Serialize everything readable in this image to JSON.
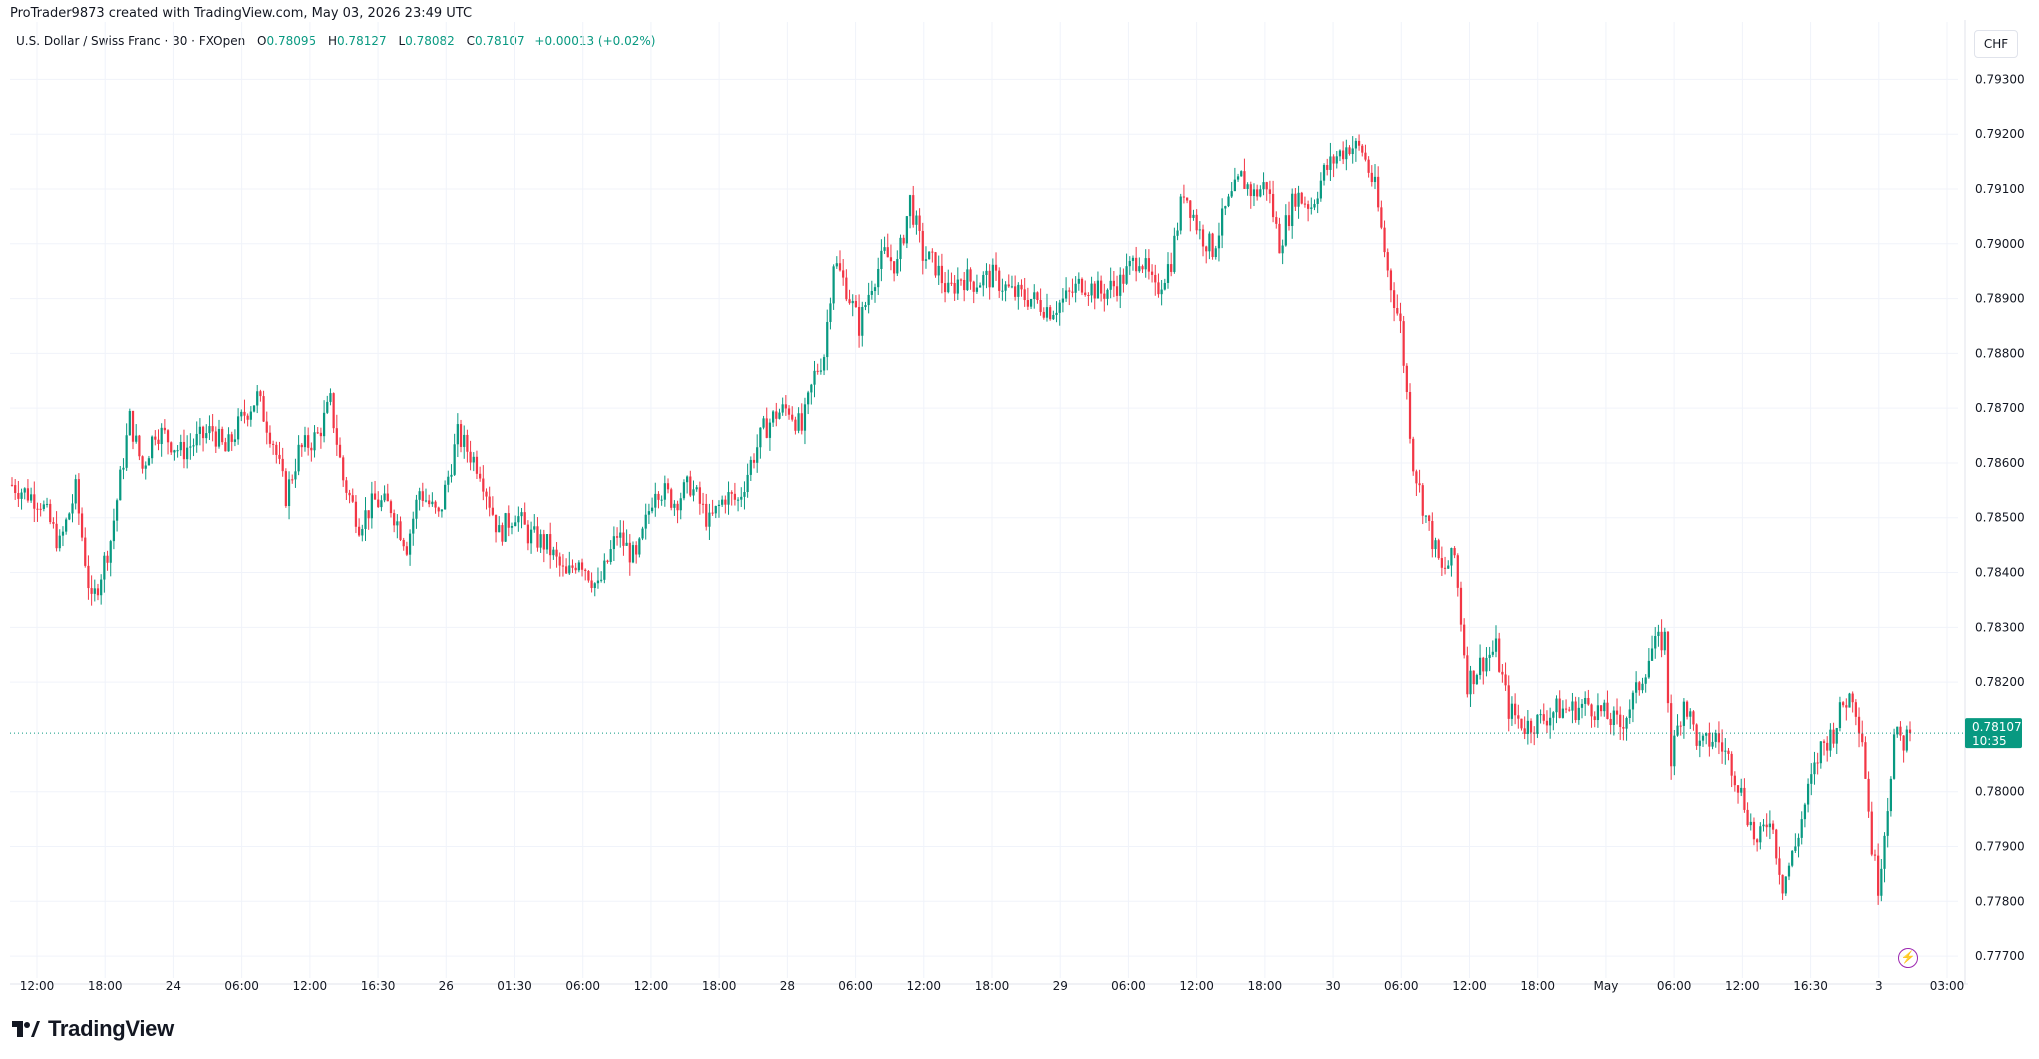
{
  "header": {
    "attribution": "ProTrader9873 created with TradingView.com, May 03, 2026 23:49 UTC"
  },
  "legend": {
    "symbol": "U.S. Dollar / Swiss Franc · 30 · FXOpen",
    "open_label": "O",
    "open_value": "0.78095",
    "high_label": "H",
    "high_value": "0.78127",
    "low_label": "L",
    "low_value": "0.78082",
    "close_label": "C",
    "close_value": "0.78107",
    "change": "+0.00013 (+0.02%)"
  },
  "currency_button": "CHF",
  "last_price_tag": {
    "price": "0.78107",
    "countdown": "10:35"
  },
  "brand": {
    "name": "TradingView",
    "logo_icon": "tradingview-logo-icon"
  },
  "icons": {
    "bolt": "lightning-icon"
  },
  "colors": {
    "up": "#089981",
    "down": "#f23645",
    "grid": "#f0f3fa",
    "text": "#131722"
  },
  "chart_data": {
    "type": "candlestick",
    "symbol": "USDCHF",
    "interval": "30",
    "ylim": [
      0.7766,
      0.7935
    ],
    "y_ticks": [
      "0.79300",
      "0.79200",
      "0.79100",
      "0.79000",
      "0.78900",
      "0.78800",
      "0.78700",
      "0.78600",
      "0.78500",
      "0.78400",
      "0.78300",
      "0.78200",
      "0.78000",
      "0.77900",
      "0.77800",
      "0.77700"
    ],
    "x_ticks": [
      "12:00",
      "18:00",
      "24",
      "06:00",
      "12:00",
      "16:30",
      "26",
      "01:30",
      "06:00",
      "12:00",
      "18:00",
      "28",
      "06:00",
      "12:00",
      "18:00",
      "29",
      "06:00",
      "12:00",
      "18:00",
      "30",
      "06:00",
      "12:00",
      "18:00",
      "May",
      "06:00",
      "12:00",
      "16:30",
      "3",
      "03:00"
    ],
    "last_price": 0.78107,
    "path_points": [
      [
        0,
        0.7856
      ],
      [
        9,
        0.7853
      ],
      [
        15,
        0.7845
      ],
      [
        20,
        0.7855
      ],
      [
        25,
        0.7834
      ],
      [
        31,
        0.7846
      ],
      [
        37,
        0.7868
      ],
      [
        41,
        0.7859
      ],
      [
        45,
        0.7866
      ],
      [
        48,
        0.7865
      ],
      [
        53,
        0.7862
      ],
      [
        58,
        0.7864
      ],
      [
        63,
        0.7866
      ],
      [
        67,
        0.7862
      ],
      [
        73,
        0.7869
      ],
      [
        77,
        0.7872
      ],
      [
        82,
        0.7864
      ],
      [
        86,
        0.7854
      ],
      [
        90,
        0.7862
      ],
      [
        96,
        0.7865
      ],
      [
        100,
        0.7871
      ],
      [
        104,
        0.7857
      ],
      [
        109,
        0.7849
      ],
      [
        114,
        0.7853
      ],
      [
        119,
        0.7852
      ],
      [
        124,
        0.7845
      ],
      [
        128,
        0.7855
      ],
      [
        134,
        0.785
      ],
      [
        140,
        0.7865
      ],
      [
        147,
        0.7859
      ],
      [
        153,
        0.7847
      ],
      [
        158,
        0.7851
      ],
      [
        162,
        0.7847
      ],
      [
        168,
        0.7845
      ],
      [
        174,
        0.7839
      ],
      [
        178,
        0.7843
      ],
      [
        184,
        0.7837
      ],
      [
        190,
        0.7847
      ],
      [
        196,
        0.7842
      ],
      [
        202,
        0.7856
      ],
      [
        208,
        0.7853
      ],
      [
        213,
        0.7856
      ],
      [
        219,
        0.7849
      ],
      [
        224,
        0.7854
      ],
      [
        228,
        0.7853
      ],
      [
        232,
        0.786
      ],
      [
        236,
        0.7866
      ],
      [
        240,
        0.7869
      ],
      [
        244,
        0.787
      ],
      [
        248,
        0.7866
      ],
      [
        252,
        0.7876
      ],
      [
        255,
        0.788
      ],
      [
        258,
        0.7897
      ],
      [
        262,
        0.7892
      ],
      [
        266,
        0.7885
      ],
      [
        270,
        0.7893
      ],
      [
        274,
        0.7898
      ],
      [
        278,
        0.7896
      ],
      [
        282,
        0.7908
      ],
      [
        286,
        0.7898
      ],
      [
        290,
        0.7896
      ],
      [
        294,
        0.7891
      ],
      [
        298,
        0.7894
      ],
      [
        302,
        0.7893
      ],
      [
        308,
        0.7894
      ],
      [
        314,
        0.7891
      ],
      [
        320,
        0.789
      ],
      [
        326,
        0.7888
      ],
      [
        331,
        0.789
      ],
      [
        336,
        0.7893
      ],
      [
        342,
        0.7891
      ],
      [
        348,
        0.7893
      ],
      [
        354,
        0.7898
      ],
      [
        359,
        0.7891
      ],
      [
        364,
        0.7897
      ],
      [
        368,
        0.791
      ],
      [
        373,
        0.7902
      ],
      [
        377,
        0.7899
      ],
      [
        381,
        0.7906
      ],
      [
        386,
        0.7912
      ],
      [
        390,
        0.7909
      ],
      [
        394,
        0.7911
      ],
      [
        398,
        0.79
      ],
      [
        403,
        0.7909
      ],
      [
        408,
        0.7907
      ],
      [
        412,
        0.7913
      ],
      [
        416,
        0.7916
      ],
      [
        420,
        0.7918
      ],
      [
        424,
        0.7917
      ],
      [
        428,
        0.791
      ],
      [
        432,
        0.7895
      ],
      [
        436,
        0.7885
      ],
      [
        440,
        0.786
      ],
      [
        444,
        0.785
      ],
      [
        449,
        0.784
      ],
      [
        453,
        0.7843
      ],
      [
        457,
        0.782
      ],
      [
        462,
        0.7824
      ],
      [
        466,
        0.7826
      ],
      [
        470,
        0.7815
      ],
      [
        475,
        0.7812
      ],
      [
        480,
        0.7813
      ],
      [
        485,
        0.7815
      ],
      [
        490,
        0.7815
      ],
      [
        495,
        0.7816
      ],
      [
        500,
        0.7814
      ],
      [
        505,
        0.7812
      ],
      [
        510,
        0.7818
      ],
      [
        515,
        0.7826
      ],
      [
        519,
        0.7828
      ],
      [
        521,
        0.7806
      ],
      [
        525,
        0.7817
      ],
      [
        530,
        0.7808
      ],
      [
        535,
        0.781
      ],
      [
        540,
        0.7805
      ],
      [
        544,
        0.7798
      ],
      [
        548,
        0.779
      ],
      [
        552,
        0.7796
      ],
      [
        556,
        0.7783
      ],
      [
        560,
        0.779
      ],
      [
        564,
        0.78
      ],
      [
        568,
        0.7808
      ],
      [
        572,
        0.7811
      ],
      [
        575,
        0.7816
      ],
      [
        578,
        0.7818
      ],
      [
        581,
        0.781
      ],
      [
        584,
        0.779
      ],
      [
        586,
        0.7783
      ],
      [
        589,
        0.7798
      ],
      [
        591,
        0.781
      ],
      [
        594,
        0.7809
      ],
      [
        596,
        0.7811
      ]
    ]
  }
}
